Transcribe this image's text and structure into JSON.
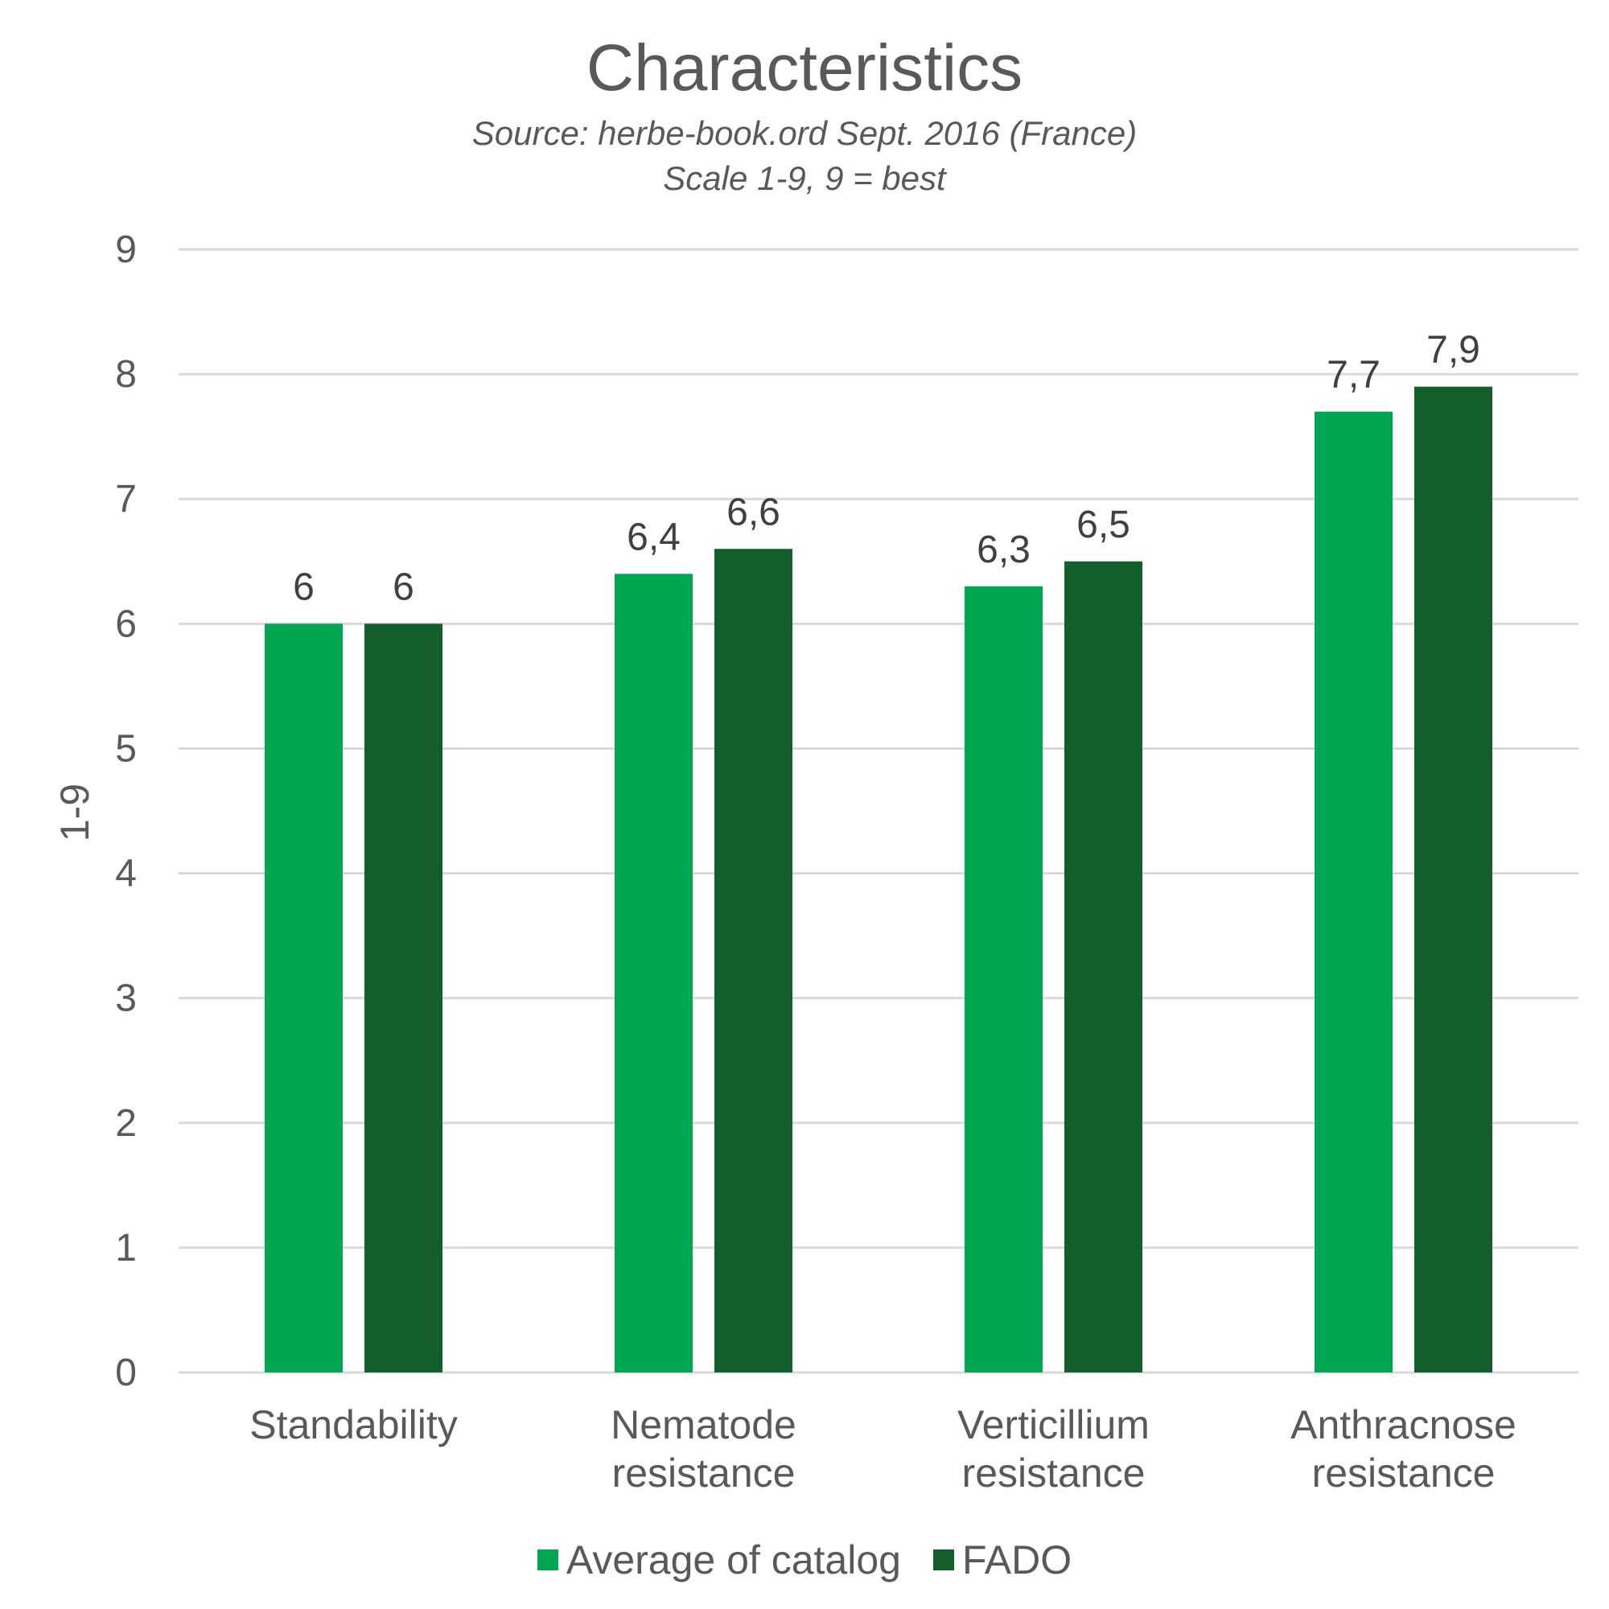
{
  "chart_data": {
    "type": "bar",
    "title": "Characteristics",
    "subtitle_lines": [
      "Source: herbe-book.ord Sept. 2016 (France)",
      "Scale 1-9, 9 = best"
    ],
    "xlabel": "",
    "ylabel": "1-9",
    "ylim": [
      0,
      9
    ],
    "yticks": [
      "0",
      "1",
      "2",
      "3",
      "4",
      "5",
      "6",
      "7",
      "8",
      "9"
    ],
    "grid": true,
    "legend_position": "bottom",
    "categories": [
      [
        "Standability"
      ],
      [
        "Nematode",
        "resistance"
      ],
      [
        "Verticillium",
        "resistance"
      ],
      [
        "Anthracnose",
        "resistance"
      ]
    ],
    "series": [
      {
        "name": "Average of catalog",
        "color": "#00A651",
        "values": [
          6,
          6.4,
          6.3,
          7.7
        ],
        "labels": [
          "6",
          "6,4",
          "6,3",
          "7,7"
        ]
      },
      {
        "name": "FADO",
        "color": "#145E2D",
        "values": [
          6,
          6.6,
          6.5,
          7.9
        ],
        "labels": [
          "6",
          "6,6",
          "6,5",
          "7,9"
        ]
      }
    ]
  }
}
